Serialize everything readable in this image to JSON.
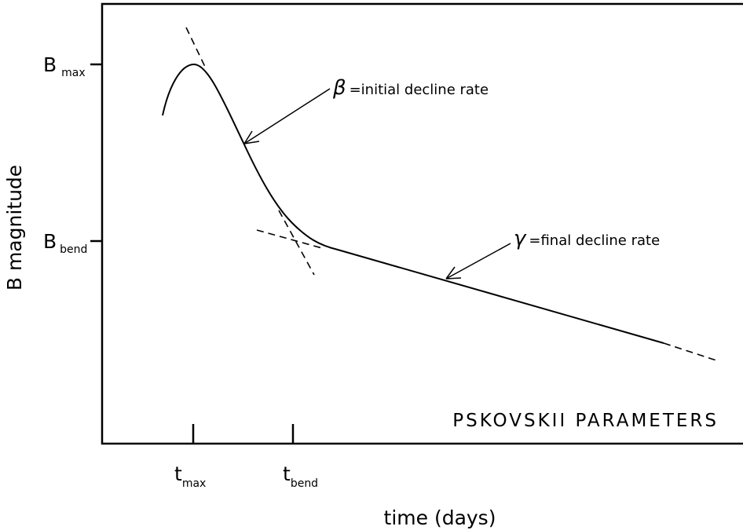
{
  "title": "PSKOVSKII PARAMETERS",
  "x_axis": {
    "label": "time (days)",
    "ticks": [
      {
        "symbol": "t",
        "subscript": "max"
      },
      {
        "symbol": "t",
        "subscript": "bend"
      }
    ]
  },
  "y_axis": {
    "label": "B magnitude",
    "ticks": [
      {
        "symbol": "B",
        "subscript": "max"
      },
      {
        "symbol": "B",
        "subscript": "bend"
      }
    ]
  },
  "annotations": [
    {
      "symbol": "β",
      "text": "=initial decline rate"
    },
    {
      "symbol": "γ",
      "text": "=final decline rate"
    }
  ]
}
